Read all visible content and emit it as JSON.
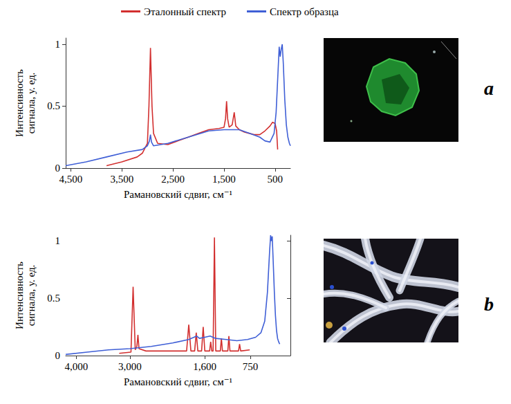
{
  "chart_data": [
    {
      "type": "line",
      "x_label": "Рамановский сдвиг, см⁻¹",
      "y_label": "Интенсивность сигнала, у. ед.",
      "annotations": [
        "a"
      ],
      "xlim": [
        4600,
        200
      ],
      "xticks": [
        4500,
        3500,
        2500,
        1500,
        500
      ],
      "ylim": [
        0,
        1.05
      ],
      "yticks": [
        0,
        0.5,
        1
      ],
      "grid": false,
      "legend": "top",
      "series": [
        {
          "name": "Эталонный спектр",
          "color": "#d22f2f",
          "x": [
            3800,
            3500,
            3200,
            3100,
            3000,
            2970,
            2940,
            2910,
            2880,
            2800,
            2600,
            2400,
            2200,
            2000,
            1800,
            1600,
            1500,
            1470,
            1450,
            1430,
            1400,
            1340,
            1300,
            1270,
            1200,
            1100,
            1000,
            900,
            800,
            700,
            600,
            550,
            500,
            470,
            450
          ],
          "values": [
            0.02,
            0.05,
            0.09,
            0.12,
            0.2,
            0.5,
            0.97,
            0.5,
            0.28,
            0.2,
            0.19,
            0.22,
            0.25,
            0.28,
            0.31,
            0.32,
            0.33,
            0.4,
            0.54,
            0.4,
            0.33,
            0.35,
            0.45,
            0.34,
            0.31,
            0.29,
            0.28,
            0.27,
            0.27,
            0.3,
            0.34,
            0.37,
            0.36,
            0.3,
            0.15
          ]
        },
        {
          "name": "Спектр образца",
          "color": "#3f5fd6",
          "x": [
            4600,
            4200,
            3800,
            3400,
            3100,
            3000,
            2960,
            2940,
            2920,
            2880,
            2600,
            2200,
            1800,
            1500,
            1200,
            1000,
            800,
            700,
            600,
            520,
            480,
            440,
            420,
            400,
            380,
            360,
            340,
            310,
            280,
            250,
            220,
            200
          ],
          "values": [
            0.02,
            0.05,
            0.09,
            0.13,
            0.15,
            0.18,
            0.22,
            0.27,
            0.21,
            0.18,
            0.2,
            0.25,
            0.3,
            0.31,
            0.31,
            0.28,
            0.25,
            0.22,
            0.21,
            0.28,
            0.45,
            0.8,
            0.98,
            0.9,
            0.96,
            1.0,
            0.85,
            0.55,
            0.35,
            0.25,
            0.2,
            0.18
          ]
        }
      ]
    },
    {
      "type": "line",
      "x_label": "Рамановский сдвиг, см⁻¹",
      "y_label": "Интенсивность сигнала, у. ед.",
      "annotations": [
        "b"
      ],
      "xlim": [
        4200,
        0
      ],
      "xticks": [
        4000,
        3000,
        1600,
        750
      ],
      "ylim": [
        0,
        1.05
      ],
      "yticks": [
        0,
        0.5,
        1
      ],
      "grid": false,
      "series": [
        {
          "name": "Эталонный спектр",
          "color": "#d22f2f",
          "x": [
            3200,
            2980,
            2940,
            2900,
            2870,
            2850,
            2830,
            2700,
            1940,
            1900,
            1860,
            1790,
            1760,
            1730,
            1660,
            1630,
            1600,
            1510,
            1490,
            1470,
            1445,
            1420,
            1395,
            1310,
            1290,
            1270,
            1170,
            1150,
            1130,
            970,
            950,
            930,
            760
          ],
          "values": [
            0.02,
            0.03,
            0.6,
            0.05,
            0.08,
            0.18,
            0.06,
            0.04,
            0.04,
            0.27,
            0.04,
            0.04,
            0.2,
            0.04,
            0.04,
            0.25,
            0.04,
            0.04,
            0.12,
            0.04,
            0.04,
            1.03,
            0.04,
            0.04,
            0.15,
            0.04,
            0.04,
            0.17,
            0.04,
            0.04,
            0.1,
            0.04,
            0.05
          ]
        },
        {
          "name": "Спектр образца",
          "color": "#3f5fd6",
          "x": [
            4200,
            3800,
            3400,
            3000,
            2600,
            2200,
            1900,
            1750,
            1700,
            1600,
            1500,
            1400,
            1200,
            1000,
            800,
            650,
            550,
            480,
            430,
            390,
            370,
            355,
            340,
            320,
            300,
            280,
            260,
            240,
            220,
            200
          ],
          "values": [
            0.01,
            0.03,
            0.05,
            0.06,
            0.08,
            0.11,
            0.14,
            0.17,
            0.15,
            0.16,
            0.17,
            0.15,
            0.14,
            0.13,
            0.14,
            0.16,
            0.2,
            0.3,
            0.55,
            0.9,
            1.05,
            1.0,
            1.04,
            0.8,
            0.55,
            0.35,
            0.22,
            0.15,
            0.12,
            0.1
          ]
        }
      ]
    }
  ]
}
